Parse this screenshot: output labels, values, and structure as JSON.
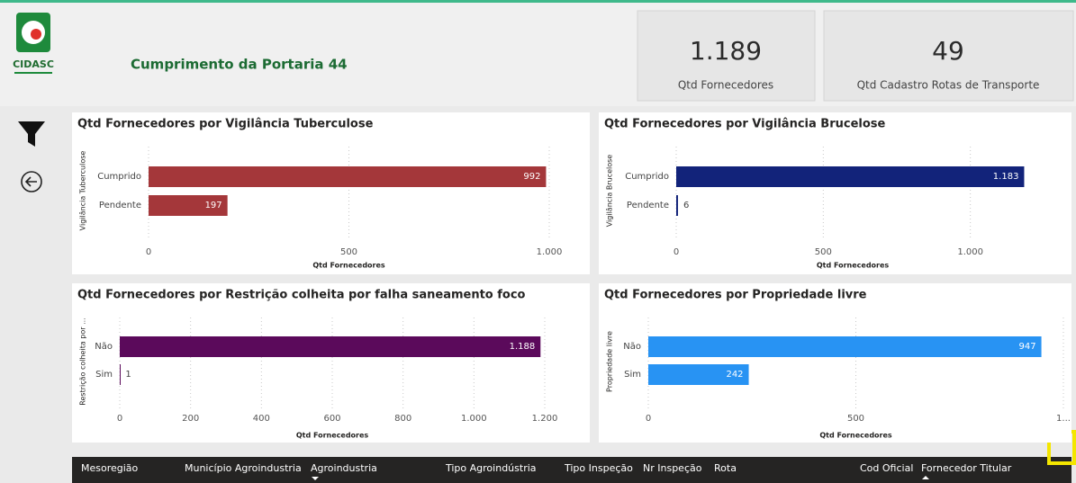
{
  "header": {
    "logo_text": "CIDASC",
    "title": "Cumprimento da Portaria 44"
  },
  "kpis": [
    {
      "value": "1.189",
      "label": "Qtd Fornecedores"
    },
    {
      "value": "49",
      "label": "Qtd Cadastro Rotas de Transporte"
    }
  ],
  "chart_data": [
    {
      "type": "bar",
      "orientation": "horizontal",
      "title": "Qtd Fornecedores por Vigilância Tuberculose",
      "x_label": "Qtd Fornecedores",
      "y_label": "Vigilância Tuberculose",
      "categories": [
        "Cumprido",
        "Pendente"
      ],
      "values": [
        992,
        197
      ],
      "color": "#a4373a",
      "xlim": [
        0,
        1000
      ],
      "xticks": [
        0,
        500,
        {
          "value": 1000,
          "label": "1.000"
        }
      ],
      "grid": true
    },
    {
      "type": "bar",
      "orientation": "horizontal",
      "title": "Qtd Fornecedores por Vigilância Brucelose",
      "x_label": "Qtd Fornecedores",
      "y_label": "Vigilância Brucelose",
      "categories": [
        "Cumprido",
        "Pendente"
      ],
      "values": [
        1183,
        6
      ],
      "value_labels": [
        "1.183",
        "6"
      ],
      "color": "#12237a",
      "xlim": [
        0,
        1200
      ],
      "xticks": [
        0,
        500,
        {
          "value": 1000,
          "label": "1.000"
        }
      ],
      "grid": true
    },
    {
      "type": "bar",
      "orientation": "horizontal",
      "title": "Qtd Fornecedores por Restrição colheita por falha saneamento foco",
      "x_label": "Qtd Fornecedores",
      "y_label": "Restrição colheita por ...",
      "categories": [
        "Não",
        "Sim"
      ],
      "values": [
        1188,
        1
      ],
      "value_labels": [
        "1.188",
        "1"
      ],
      "color": "#5b0a5b",
      "xlim": [
        0,
        1200
      ],
      "xticks": [
        0,
        200,
        400,
        600,
        800,
        {
          "value": 1000,
          "label": "1.000"
        },
        {
          "value": 1200,
          "label": "1.200"
        }
      ],
      "grid": true
    },
    {
      "type": "bar",
      "orientation": "horizontal",
      "title": "Qtd Fornecedores por Propriedade livre",
      "x_label": "Qtd Fornecedores",
      "y_label": "Propriedade livre",
      "categories": [
        "Não",
        "Sim"
      ],
      "values": [
        947,
        242
      ],
      "color": "#2893f3",
      "xlim": [
        0,
        1000
      ],
      "xticks": [
        0,
        500,
        {
          "value": 1000,
          "label": "1..."
        }
      ],
      "grid": true
    }
  ],
  "table": {
    "columns": [
      "Mesoregião",
      "Município Agroindustria",
      "Agroindustria",
      "Tipo Agroindústria",
      "Tipo Inspeção",
      "Nr Inspeção",
      "Rota",
      "Cod Oficial",
      "Fornecedor Titular"
    ]
  }
}
